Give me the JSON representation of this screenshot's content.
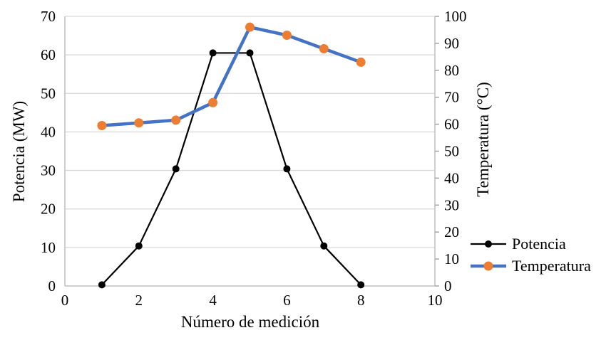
{
  "figure": {
    "background": "#ffffff"
  },
  "chart_data": {
    "type": "line",
    "x": [
      1,
      2,
      3,
      4,
      5,
      6,
      7,
      8
    ],
    "series": [
      {
        "name": "Potencia",
        "axis": "left",
        "values": [
          0.3,
          10.4,
          30.4,
          60.5,
          60.5,
          30.4,
          10.4,
          0.3
        ],
        "line_color": "#000000",
        "marker_color": "#000000",
        "line_width": 2.2,
        "marker_radius": 5
      },
      {
        "name": "Temperatura",
        "axis": "right",
        "values": [
          59.5,
          60.5,
          61.5,
          68,
          96,
          93,
          88,
          83
        ],
        "line_color": "#4472C4",
        "marker_color": "#ED7D31",
        "line_width": 4.5,
        "marker_radius": 6.5
      }
    ],
    "x_axis": {
      "label": "Número de medición",
      "min": 0,
      "max": 10,
      "tick_step": 2
    },
    "left_axis": {
      "label": "Potencia (MW)",
      "min": 0,
      "max": 70,
      "tick_step": 10
    },
    "right_axis": {
      "label": "Temperatura (°C)",
      "min": 0,
      "max": 100,
      "tick_step": 10
    },
    "legend": {
      "position": "right",
      "entries": [
        "Potencia",
        "Temperatura"
      ]
    },
    "grid": "horizontal-primary-axis",
    "colors": {
      "gridline": "#D9D9D9",
      "axis_line": "#BFBFBF",
      "tick_mark": "#A6A6A6",
      "text": "#000000"
    }
  }
}
